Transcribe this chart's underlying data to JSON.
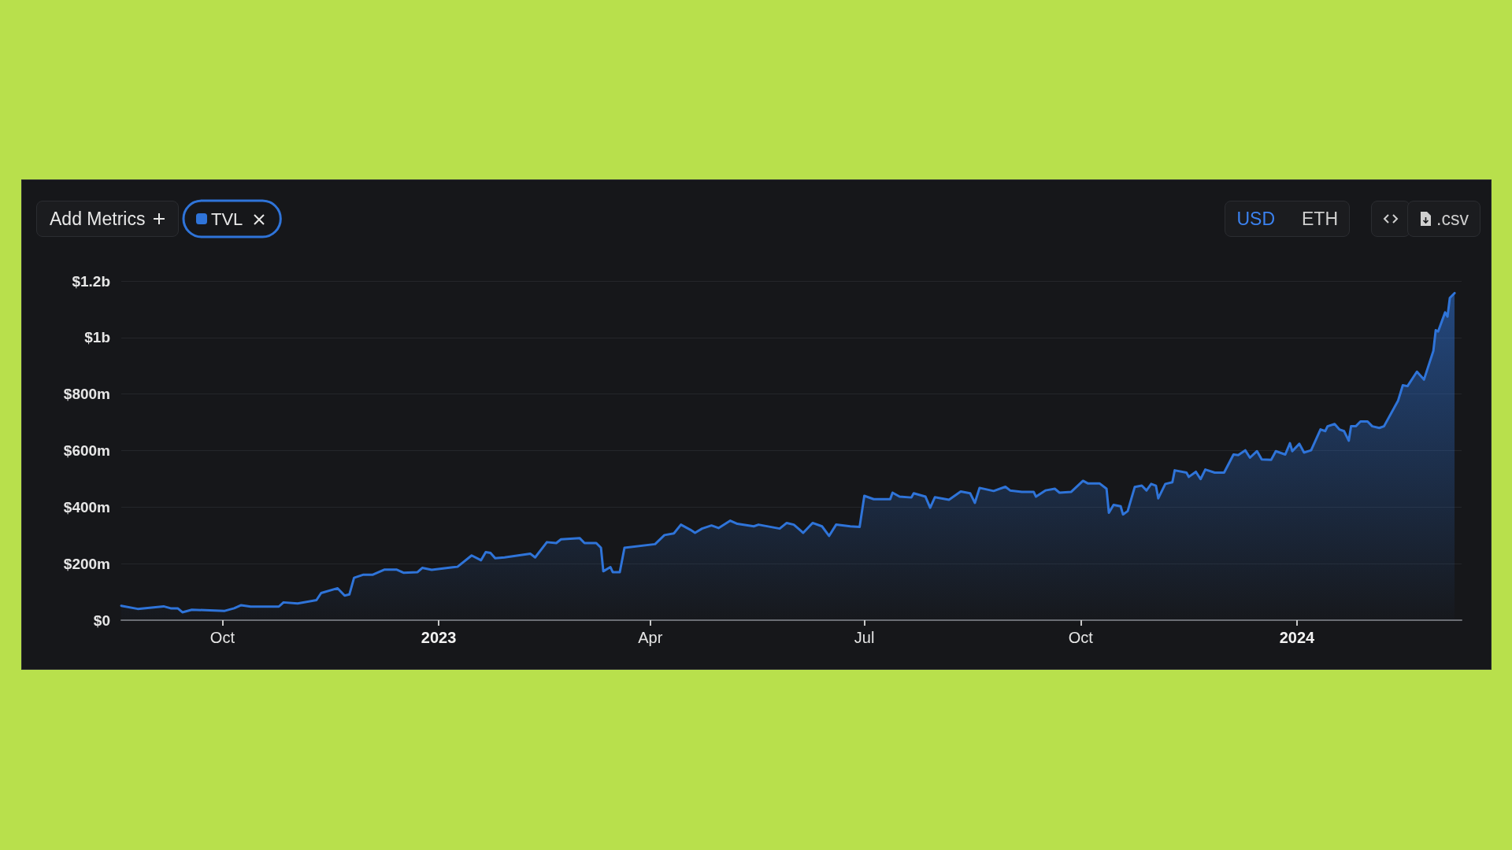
{
  "chart_data": {
    "type": "area",
    "annotations": [
      "Add Metrics",
      "USD",
      "ETH",
      ".csv"
    ],
    "x": [
      "2022-08-19",
      "2022-08-26",
      "2022-09-06",
      "2022-09-09",
      "2022-09-12",
      "2022-09-14",
      "2022-09-18",
      "2022-10-02",
      "2022-10-06",
      "2022-10-09",
      "2022-10-13",
      "2022-10-25",
      "2022-10-27",
      "2022-11-02",
      "2022-11-10",
      "2022-11-12",
      "2022-11-19",
      "2022-11-22",
      "2022-11-24",
      "2022-11-26",
      "2022-11-30",
      "2022-12-04",
      "2022-12-09",
      "2022-12-14",
      "2022-12-17",
      "2022-12-23",
      "2022-12-25",
      "2022-12-29",
      "2023-01-07",
      "2023-01-09",
      "2023-01-15",
      "2023-01-19",
      "2023-01-21",
      "2023-01-23",
      "2023-01-25",
      "2023-01-29",
      "2023-02-09",
      "2023-02-11",
      "2023-02-16",
      "2023-02-20",
      "2023-02-22",
      "2023-03-02",
      "2023-03-04",
      "2023-03-09",
      "2023-03-11",
      "2023-03-12",
      "2023-03-15",
      "2023-03-16",
      "2023-03-19",
      "2023-03-21",
      "2023-04-03",
      "2023-04-07",
      "2023-04-11",
      "2023-04-14",
      "2023-04-18",
      "2023-04-20",
      "2023-04-23",
      "2023-04-27",
      "2023-04-30",
      "2023-05-05",
      "2023-05-08",
      "2023-05-15",
      "2023-05-17",
      "2023-05-26",
      "2023-05-29",
      "2023-06-01",
      "2023-06-05",
      "2023-06-09",
      "2023-06-13",
      "2023-06-16",
      "2023-06-19",
      "2023-06-25",
      "2023-06-29",
      "2023-07-01",
      "2023-07-05",
      "2023-07-12",
      "2023-07-13",
      "2023-07-16",
      "2023-07-21",
      "2023-07-22",
      "2023-07-27",
      "2023-07-29",
      "2023-07-31",
      "2023-08-06",
      "2023-08-11",
      "2023-08-15",
      "2023-08-17",
      "2023-08-19",
      "2023-08-25",
      "2023-08-30",
      "2023-09-01",
      "2023-09-06",
      "2023-09-11",
      "2023-09-12",
      "2023-09-16",
      "2023-09-20",
      "2023-09-22",
      "2023-09-27",
      "2023-10-02",
      "2023-10-04",
      "2023-10-09",
      "2023-10-12",
      "2023-10-13",
      "2023-10-15",
      "2023-10-18",
      "2023-10-19",
      "2023-10-21",
      "2023-10-24",
      "2023-10-27",
      "2023-10-29",
      "2023-10-31",
      "2023-11-02",
      "2023-11-03",
      "2023-11-06",
      "2023-11-09",
      "2023-11-10",
      "2023-11-15",
      "2023-11-16",
      "2023-11-19",
      "2023-11-21",
      "2023-11-23",
      "2023-11-27",
      "2023-12-01",
      "2023-12-05",
      "2023-12-07",
      "2023-12-10",
      "2023-12-12",
      "2023-12-15",
      "2023-12-17",
      "2023-12-21",
      "2023-12-23",
      "2023-12-27",
      "2023-12-29",
      "2023-12-30",
      "2024-01-02",
      "2024-01-04",
      "2024-01-07",
      "2024-01-11",
      "2024-01-13",
      "2024-01-14",
      "2024-01-17",
      "2024-01-19",
      "2024-01-21",
      "2024-01-23",
      "2024-01-24",
      "2024-01-26",
      "2024-01-28",
      "2024-01-31",
      "2024-02-02",
      "2024-02-05",
      "2024-02-07",
      "2024-02-13",
      "2024-02-15",
      "2024-02-17",
      "2024-02-21",
      "2024-02-24",
      "2024-02-28",
      "2024-02-29",
      "2024-03-01",
      "2024-03-04",
      "2024-03-05",
      "2024-03-06",
      "2024-03-08"
    ],
    "series": [
      {
        "name": "TVL",
        "color": "#2f74d9",
        "values": [
          51000000,
          40000000,
          49000000,
          42000000,
          42000000,
          28000000,
          37000000,
          33000000,
          42000000,
          53000000,
          48000000,
          48000000,
          63000000,
          59000000,
          71000000,
          96000000,
          113000000,
          87000000,
          91000000,
          150000000,
          161000000,
          161000000,
          179000000,
          179000000,
          168000000,
          170000000,
          185000000,
          178000000,
          187000000,
          189000000,
          229000000,
          212000000,
          241000000,
          238000000,
          219000000,
          222000000,
          235000000,
          222000000,
          276000000,
          273000000,
          286000000,
          290000000,
          273000000,
          273000000,
          256000000,
          173000000,
          188000000,
          170000000,
          170000000,
          256000000,
          269000000,
          301000000,
          307000000,
          338000000,
          320000000,
          309000000,
          324000000,
          335000000,
          326000000,
          352000000,
          341000000,
          332000000,
          338000000,
          324000000,
          344000000,
          338000000,
          309000000,
          344000000,
          332000000,
          298000000,
          338000000,
          332000000,
          330000000,
          440000000,
          428000000,
          428000000,
          451000000,
          437000000,
          434000000,
          449000000,
          437000000,
          398000000,
          435000000,
          426000000,
          455000000,
          449000000,
          415000000,
          468000000,
          457000000,
          472000000,
          459000000,
          454000000,
          454000000,
          437000000,
          459000000,
          465000000,
          451000000,
          454000000,
          493000000,
          484000000,
          484000000,
          465000000,
          380000000,
          408000000,
          403000000,
          374000000,
          386000000,
          471000000,
          476000000,
          459000000,
          482000000,
          476000000,
          431000000,
          482000000,
          488000000,
          530000000,
          522000000,
          507000000,
          525000000,
          499000000,
          533000000,
          522000000,
          522000000,
          586000000,
          584000000,
          601000000,
          575000000,
          598000000,
          569000000,
          567000000,
          598000000,
          586000000,
          626000000,
          598000000,
          624000000,
          593000000,
          601000000,
          675000000,
          669000000,
          686000000,
          694000000,
          675000000,
          669000000,
          635000000,
          686000000,
          686000000,
          703000000,
          703000000,
          686000000,
          680000000,
          686000000,
          777000000,
          831000000,
          828000000,
          879000000,
          851000000,
          953000000,
          1026000000,
          1021000000,
          1089000000,
          1074000000,
          1140000000,
          1157000000
        ]
      }
    ],
    "xlim": [
      "2022-08-19",
      "2024-03-11"
    ],
    "xticks": [
      {
        "value": "2022-10-01",
        "label": "Oct"
      },
      {
        "value": "2023-01-01",
        "label": "2023"
      },
      {
        "value": "2023-04-01",
        "label": "Apr"
      },
      {
        "value": "2023-07-01",
        "label": "Jul"
      },
      {
        "value": "2023-10-01",
        "label": "Oct"
      },
      {
        "value": "2024-01-01",
        "label": "2024"
      }
    ],
    "ylim": [
      0,
      1200000000
    ],
    "yticks": [
      {
        "value": 0,
        "label": "$0"
      },
      {
        "value": 200000000,
        "label": "$200m"
      },
      {
        "value": 400000000,
        "label": "$400m"
      },
      {
        "value": 600000000,
        "label": "$600m"
      },
      {
        "value": 800000000,
        "label": "$800m"
      },
      {
        "value": 1000000000,
        "label": "$1b"
      },
      {
        "value": 1200000000,
        "label": "$1.2b"
      }
    ],
    "grid": "y",
    "legend": "top left",
    "marker": "none",
    "line_style": "solid"
  }
}
